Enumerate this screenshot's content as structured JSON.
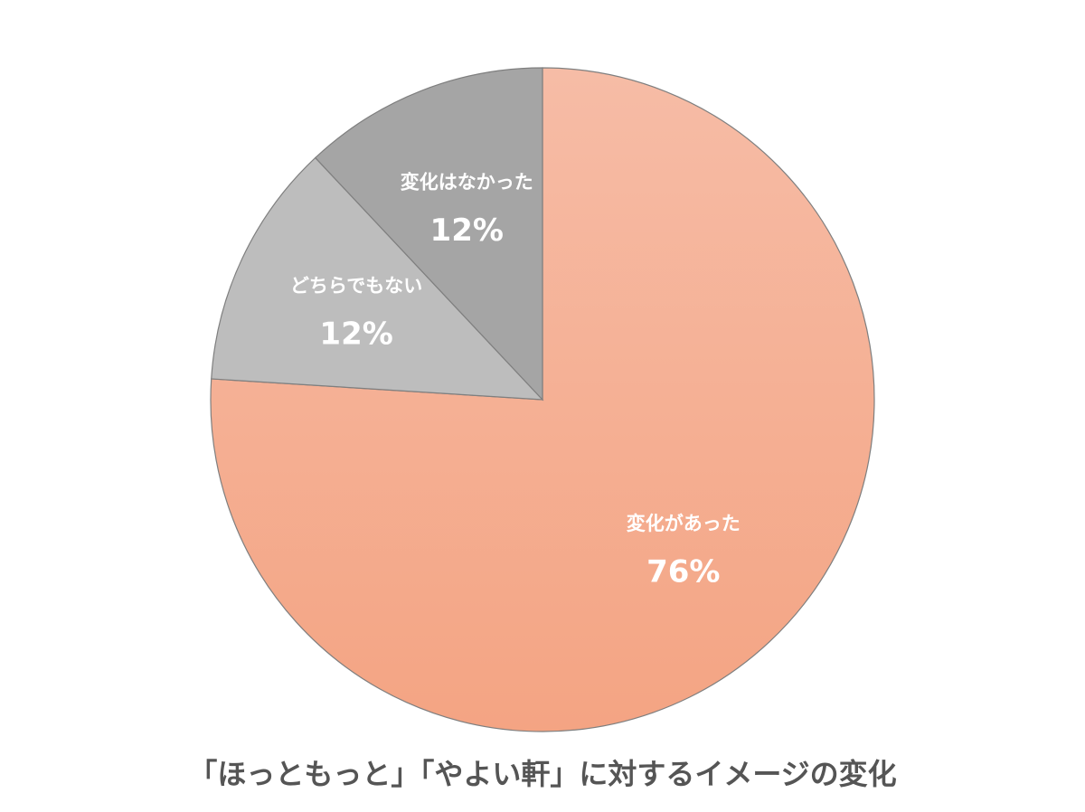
{
  "chart_data": {
    "type": "pie",
    "title": "「ほっともっと」「やよい軒」に対するイメージの変化",
    "categories": [
      "変化があった",
      "どちらでもない",
      "変化はなかった"
    ],
    "values": [
      76,
      12,
      12
    ],
    "value_labels": [
      "76%",
      "12%",
      "12%"
    ],
    "colors": [
      "#f5ad8f",
      "#bdbdbd",
      "#a5a5a5"
    ]
  }
}
